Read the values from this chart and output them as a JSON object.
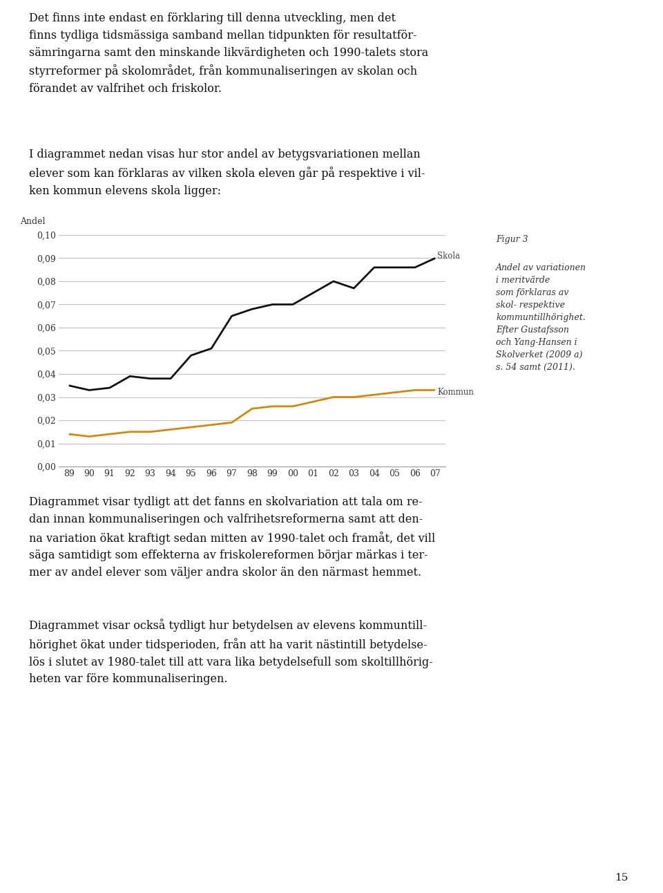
{
  "years_labels": [
    "89",
    "90",
    "91",
    "92",
    "93",
    "94",
    "95",
    "96",
    "97",
    "98",
    "99",
    "00",
    "01",
    "02",
    "03",
    "04",
    "05",
    "06",
    "07"
  ],
  "skola": [
    0.035,
    0.033,
    0.034,
    0.039,
    0.038,
    0.038,
    0.048,
    0.051,
    0.065,
    0.068,
    0.07,
    0.07,
    0.075,
    0.08,
    0.077,
    0.086,
    0.086,
    0.086,
    0.09
  ],
  "kommun": [
    0.014,
    0.013,
    0.014,
    0.015,
    0.015,
    0.016,
    0.017,
    0.018,
    0.019,
    0.025,
    0.026,
    0.026,
    0.028,
    0.03,
    0.03,
    0.031,
    0.032,
    0.033,
    0.033
  ],
  "skola_color": "#111111",
  "kommun_color": "#d4880a",
  "background_color": "#ffffff",
  "grid_color": "#c0c0c0",
  "ylabel": "Andel",
  "ylim": [
    0.0,
    0.1
  ],
  "yticks": [
    0.0,
    0.01,
    0.02,
    0.03,
    0.04,
    0.05,
    0.06,
    0.07,
    0.08,
    0.09,
    0.1
  ],
  "ytick_labels": [
    "0,00",
    "0,01",
    "0,02",
    "0,03",
    "0,04",
    "0,05",
    "0,06",
    "0,07",
    "0,08",
    "0,09",
    "0,10"
  ],
  "skola_label": "Skola",
  "kommun_label": "Kommun",
  "figur_label": "Figur 3",
  "caption": "Andel av variationen\ni meritvärde\nsom förklaras av\nskol- respektive\nkommuntillhörighet.\nEfter Gustafsson\noch Yang-Hansen i\nSkolverket (2009 a)\ns. 54 samt (2011).",
  "line_width": 2.0,
  "page_text_top": "Det finns inte endast en förklaring till denna utveckling, men det\nfinns tydliga tidsmässiga samband mellan tidpunkten för resultatför-\nsämringarna samt den minskande likvärdigheten och 1990-talets stora\nstyrreformer på skolområdet, från kommunaliseringen av skolan och\nförandet av valfrihet och friskolor.",
  "intro_text": "I diagrammet nedan visas hur stor andel av betygsvariationen mellan\nelever som kan förklaras av vilken skola eleven går på respektive i vil-\nken kommun elevens skola ligger:",
  "bottom_text1": "Diagrammet visar tydligt att det fanns en skolvariation att tala om re-\ndan innan kommunaliseringen och valfrihetsreformerna samt att den-\nna variation ökat kraftigt sedan mitten av 1990-talet och framåt, det vill\nsäga samtidigt som effekterna av friskolereformen börjar märkas i ter-\nmer av andel elever som väljer andra skolor än den närmast hemmet.",
  "bottom_text2_pre": "Diagrammet visar också tydligt hur betydelsen av elevens kommuntill-\nhörighet ökat under tidsperioden, från att ha varit nästintill betydelse-\nlös i slutet av 1980-talet till att vara lika betydelsefull som skoltillhörig-\nheten var ",
  "bottom_text2_italic": "före",
  "bottom_text2_post": " kommunaliseringen.",
  "page_number": "15"
}
